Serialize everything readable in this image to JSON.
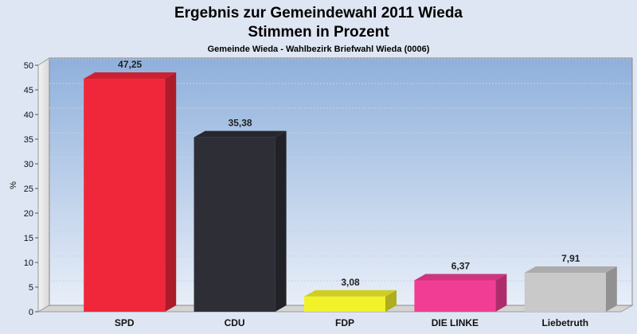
{
  "chart_data": {
    "type": "bar",
    "title": "Ergebnis zur Gemeindewahl 2011 Wieda",
    "subtitle": "Stimmen in Prozent",
    "caption": "Gemeinde Wieda - Wahlbezirk Briefwahl Wieda (0006)",
    "ylabel": "%",
    "xlabel": "",
    "ylim": [
      0,
      50
    ],
    "yticks": [
      0,
      5,
      10,
      15,
      20,
      25,
      30,
      35,
      40,
      45,
      50
    ],
    "grid": true,
    "categories": [
      "SPD",
      "CDU",
      "FDP",
      "DIE LINKE",
      "Liebetruth"
    ],
    "values": [
      47.25,
      35.38,
      3.08,
      6.37,
      7.91
    ],
    "value_labels": [
      "47,25",
      "35,38",
      "3,08",
      "6,37",
      "7,91"
    ],
    "colors": [
      "#f0273a",
      "#2e2f36",
      "#f2f22a",
      "#f23d95",
      "#c9c9c9"
    ]
  }
}
